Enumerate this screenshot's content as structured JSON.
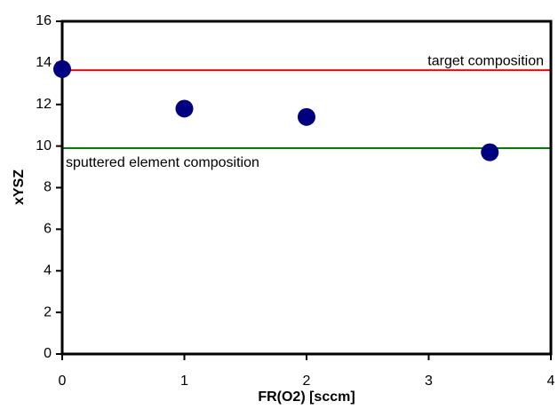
{
  "chart_data": {
    "type": "scatter",
    "xlabel": "FR(O2) [sccm]",
    "ylabel": "xYSZ",
    "x": [
      0,
      1,
      2,
      3.5
    ],
    "values": [
      13.7,
      11.8,
      11.4,
      9.7
    ],
    "color": "#000080",
    "xlim": [
      0,
      4
    ],
    "xticks": [
      0,
      1,
      2,
      3,
      4
    ],
    "ylim": [
      0,
      16
    ],
    "yticks": [
      0,
      2,
      4,
      6,
      8,
      10,
      12,
      14,
      16
    ],
    "grid": false,
    "hlines": [
      {
        "value": 13.65,
        "color": "#ff0000",
        "label": "target composition"
      },
      {
        "value": 9.9,
        "color": "#008000",
        "label": "sputtered element composition"
      }
    ]
  }
}
